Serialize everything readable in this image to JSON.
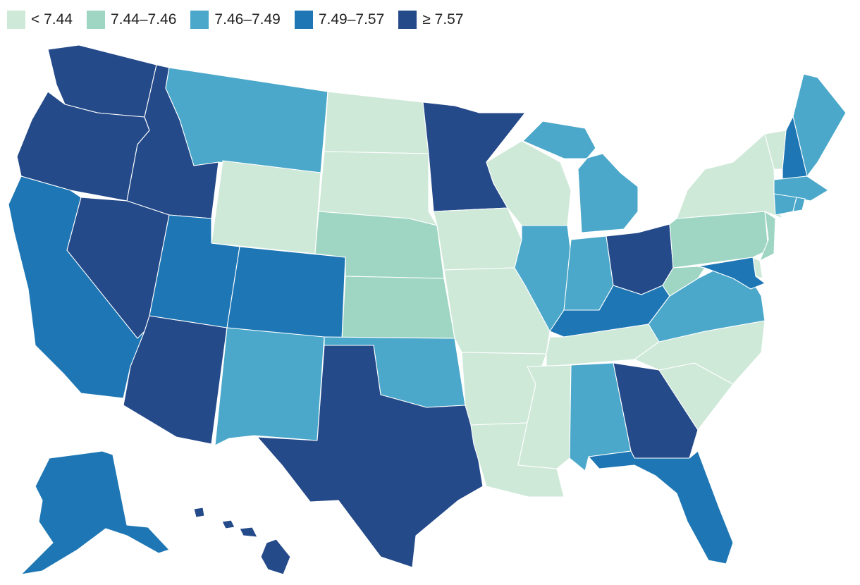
{
  "legend": [
    {
      "label": "< 7.44",
      "color": "#cfe9d9"
    },
    {
      "label": "7.44–7.46",
      "color": "#9fd6c3"
    },
    {
      "label": "7.46–7.49",
      "color": "#4ba8ca"
    },
    {
      "label": "7.49–7.57",
      "color": "#1e77b4"
    },
    {
      "label": "≥ 7.57",
      "color": "#254a8a"
    }
  ],
  "states": [
    {
      "code": "WA",
      "bin": 4
    },
    {
      "code": "OR",
      "bin": 4
    },
    {
      "code": "CA",
      "bin": 3
    },
    {
      "code": "ID",
      "bin": 4
    },
    {
      "code": "NV",
      "bin": 4
    },
    {
      "code": "AZ",
      "bin": 4
    },
    {
      "code": "UT",
      "bin": 3
    },
    {
      "code": "MT",
      "bin": 2
    },
    {
      "code": "WY",
      "bin": 0
    },
    {
      "code": "CO",
      "bin": 3
    },
    {
      "code": "NM",
      "bin": 2
    },
    {
      "code": "ND",
      "bin": 0
    },
    {
      "code": "SD",
      "bin": 0
    },
    {
      "code": "NE",
      "bin": 1
    },
    {
      "code": "KS",
      "bin": 1
    },
    {
      "code": "OK",
      "bin": 2
    },
    {
      "code": "TX",
      "bin": 4
    },
    {
      "code": "MN",
      "bin": 4
    },
    {
      "code": "IA",
      "bin": 0
    },
    {
      "code": "MO",
      "bin": 0
    },
    {
      "code": "AR",
      "bin": 0
    },
    {
      "code": "LA",
      "bin": 0
    },
    {
      "code": "WI",
      "bin": 0
    },
    {
      "code": "IL",
      "bin": 2
    },
    {
      "code": "MI",
      "bin": 2
    },
    {
      "code": "IN",
      "bin": 2
    },
    {
      "code": "OH",
      "bin": 4
    },
    {
      "code": "KY",
      "bin": 3
    },
    {
      "code": "TN",
      "bin": 0
    },
    {
      "code": "MS",
      "bin": 0
    },
    {
      "code": "AL",
      "bin": 2
    },
    {
      "code": "GA",
      "bin": 4
    },
    {
      "code": "FL",
      "bin": 3
    },
    {
      "code": "SC",
      "bin": 0
    },
    {
      "code": "NC",
      "bin": 0
    },
    {
      "code": "VA",
      "bin": 2
    },
    {
      "code": "WV",
      "bin": 1
    },
    {
      "code": "PA",
      "bin": 1
    },
    {
      "code": "NY",
      "bin": 0
    },
    {
      "code": "VT",
      "bin": 0
    },
    {
      "code": "NH",
      "bin": 3
    },
    {
      "code": "ME",
      "bin": 2
    },
    {
      "code": "MA",
      "bin": 2
    },
    {
      "code": "CT",
      "bin": 2
    },
    {
      "code": "RI",
      "bin": 2
    },
    {
      "code": "NJ",
      "bin": 1
    },
    {
      "code": "DE",
      "bin": 0
    },
    {
      "code": "MD",
      "bin": 3
    },
    {
      "code": "AK",
      "bin": 3
    },
    {
      "code": "HI",
      "bin": 4
    }
  ]
}
